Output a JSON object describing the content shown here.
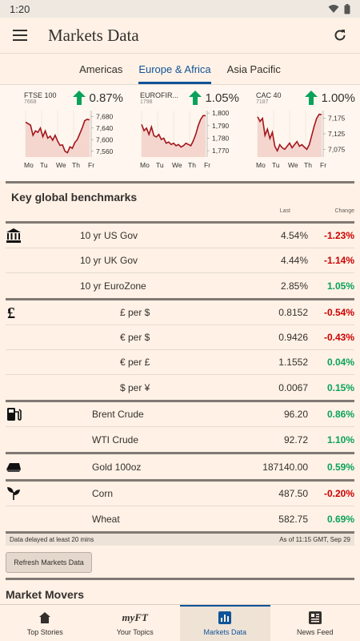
{
  "status": {
    "time": "1:20"
  },
  "app": {
    "title": "Markets Data"
  },
  "tabs": [
    {
      "label": "Americas",
      "active": false
    },
    {
      "label": "Europe & Africa",
      "active": true
    },
    {
      "label": "Asia Pacific",
      "active": false
    }
  ],
  "charts": [
    {
      "name": "FTSE 100",
      "value": "7668",
      "change": "0.87%",
      "yticks": [
        "7,680",
        "7,640",
        "7,600",
        "7,560"
      ],
      "ylim": [
        7540,
        7700
      ],
      "points": [
        7660,
        7655,
        7650,
        7615,
        7630,
        7625,
        7640,
        7610,
        7630,
        7605,
        7612,
        7598,
        7615,
        7595,
        7580,
        7582,
        7560,
        7555,
        7575,
        7570,
        7590,
        7600,
        7620,
        7640,
        7665,
        7670,
        7668
      ],
      "days": [
        "Mo",
        "Tu",
        "We",
        "Th",
        "Fr"
      ]
    },
    {
      "name": "EUROFIR...",
      "value": "1798",
      "change": "1.05%",
      "yticks": [
        "1,800",
        "1,790",
        "1,780",
        "1,770"
      ],
      "ylim": [
        1765,
        1802
      ],
      "points": [
        1791,
        1786,
        1788,
        1783,
        1789,
        1782,
        1781,
        1783,
        1779,
        1780,
        1776,
        1777,
        1775,
        1776,
        1774,
        1775,
        1773,
        1774,
        1776,
        1775,
        1774,
        1778,
        1783,
        1790,
        1795,
        1798,
        1798
      ],
      "days": [
        "Mo",
        "Tu",
        "We",
        "Th",
        "Fr"
      ]
    },
    {
      "name": "CAC 40",
      "value": "7187",
      "change": "1.00%",
      "yticks": [
        "7,175",
        "7,125",
        "7,075"
      ],
      "ylim": [
        7050,
        7200
      ],
      "points": [
        7180,
        7165,
        7175,
        7120,
        7140,
        7110,
        7130,
        7085,
        7070,
        7090,
        7080,
        7075,
        7085,
        7095,
        7080,
        7090,
        7100,
        7085,
        7090,
        7082,
        7075,
        7090,
        7120,
        7150,
        7175,
        7188,
        7187
      ],
      "days": [
        "Mo",
        "Tu",
        "We",
        "Th",
        "Fr"
      ]
    }
  ],
  "benchmarks": {
    "title": "Key global benchmarks",
    "header_last": "Last",
    "header_change": "Change",
    "groups": [
      {
        "icon": "bank-icon",
        "rows": [
          {
            "label": "10 yr US Gov",
            "last": "4.54%",
            "change": "-1.23%",
            "dir": "neg"
          },
          {
            "label": "10 yr UK Gov",
            "last": "4.44%",
            "change": "-1.14%",
            "dir": "neg"
          },
          {
            "label": "10 yr EuroZone",
            "last": "2.85%",
            "change": "1.05%",
            "dir": "pos"
          }
        ]
      },
      {
        "icon": "pound-icon",
        "rows": [
          {
            "label": "£ per $",
            "last": "0.8152",
            "change": "-0.54%",
            "dir": "neg"
          },
          {
            "label": "€ per $",
            "last": "0.9426",
            "change": "-0.43%",
            "dir": "neg"
          },
          {
            "label": "€ per £",
            "last": "1.1552",
            "change": "0.04%",
            "dir": "pos"
          },
          {
            "label": "$ per ¥",
            "last": "0.0067",
            "change": "0.15%",
            "dir": "pos"
          }
        ]
      },
      {
        "icon": "fuel-pump-icon",
        "rows": [
          {
            "label": "Brent Crude",
            "last": "96.20",
            "change": "0.86%",
            "dir": "pos"
          },
          {
            "label": "WTI Crude",
            "last": "92.72",
            "change": "1.10%",
            "dir": "pos"
          }
        ]
      },
      {
        "icon": "gold-bar-icon",
        "rows": [
          {
            "label": "Gold 100oz",
            "last": "187140.00",
            "change": "0.59%",
            "dir": "pos"
          }
        ]
      },
      {
        "icon": "leaf-icon",
        "rows": [
          {
            "label": "Corn",
            "last": "487.50",
            "change": "-0.20%",
            "dir": "neg"
          },
          {
            "label": "Wheat",
            "last": "582.75",
            "change": "0.69%",
            "dir": "pos"
          }
        ]
      }
    ],
    "delay_note": "Data delayed at least 20 mins",
    "as_of": "As of 11:15 GMT, Sep 29"
  },
  "refresh_label": "Refresh Markets Data",
  "movers_title": "Market Movers",
  "nav": [
    {
      "label": "Top Stories",
      "icon": "home-icon",
      "active": false
    },
    {
      "label": "Your Topics",
      "icon": "myft-icon",
      "active": false
    },
    {
      "label": "Markets Data",
      "icon": "bar-chart-icon",
      "active": true
    },
    {
      "label": "News Feed",
      "icon": "news-feed-icon",
      "active": false
    }
  ],
  "nav_myft": "myFT",
  "colors": {
    "accent": "#0f5499",
    "negative": "#cc0000",
    "positive": "#09a25a",
    "chart_line": "#a3151c",
    "up_arrow": "#09a25a"
  }
}
